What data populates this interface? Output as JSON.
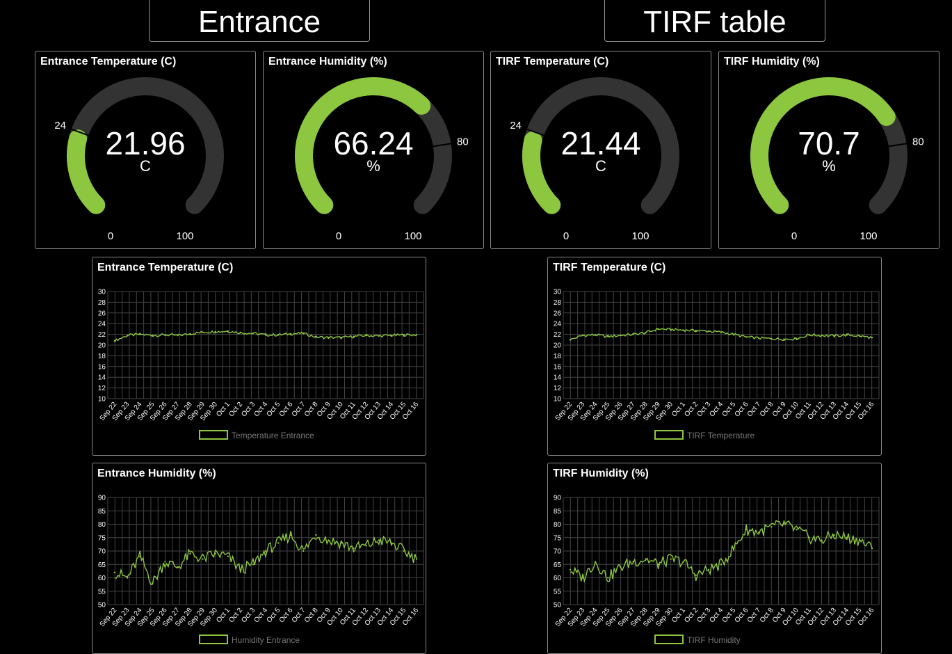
{
  "sections": [
    {
      "title": "Entrance"
    },
    {
      "title": "TIRF table"
    }
  ],
  "colors": {
    "accent": "#8dc63f",
    "track": "#333333",
    "grid": "#444444",
    "border": "#8a8a8a"
  },
  "gauges": [
    {
      "title": "Entrance Temperature (C)",
      "value": "21.96",
      "number": 21.96,
      "unit": "C",
      "min_label": "0",
      "max_label": "100",
      "threshold_label": "24",
      "min": 0,
      "max": 100,
      "threshold": 24
    },
    {
      "title": "Entrance Humidity (%)",
      "value": "66.24",
      "number": 66.24,
      "unit": "%",
      "min_label": "0",
      "max_label": "100",
      "threshold_label": "80",
      "min": 0,
      "max": 100,
      "threshold": 80
    },
    {
      "title": "TIRF Temperature (C)",
      "value": "21.44",
      "number": 21.44,
      "unit": "C",
      "min_label": "0",
      "max_label": "100",
      "threshold_label": "24",
      "min": 0,
      "max": 100,
      "threshold": 24
    },
    {
      "title": "TIRF Humidity (%)",
      "value": "70.7",
      "number": 70.7,
      "unit": "%",
      "min_label": "0",
      "max_label": "100",
      "threshold_label": "80",
      "min": 0,
      "max": 100,
      "threshold": 80
    }
  ],
  "chart_data": [
    {
      "type": "line",
      "title": "Entrance Temperature (C)",
      "x": [
        "Sep 22",
        "Sep 23",
        "Sep 24",
        "Sep 25",
        "Sep 26",
        "Sep 27",
        "Sep 28",
        "Sep 29",
        "Sep 30",
        "Oct 1",
        "Oct 2",
        "Oct 3",
        "Oct 4",
        "Oct 5",
        "Oct 6",
        "Oct 7",
        "Oct 8",
        "Oct 9",
        "Oct 10",
        "Oct 11",
        "Oct 12",
        "Oct 13",
        "Oct 14",
        "Oct 15",
        "Oct 16"
      ],
      "y_ticks": [
        10,
        12,
        14,
        16,
        18,
        20,
        22,
        24,
        26,
        28,
        30
      ],
      "ylim": [
        10,
        30
      ],
      "series": [
        {
          "name": "Temperature Entrance",
          "values": [
            20.8,
            21.8,
            22.0,
            21.8,
            21.9,
            21.8,
            22.1,
            22.4,
            22.5,
            22.6,
            22.3,
            22.2,
            21.9,
            21.9,
            22.1,
            22.2,
            21.5,
            21.4,
            21.4,
            21.6,
            21.8,
            21.7,
            21.8,
            21.9,
            21.9
          ]
        }
      ],
      "grid": true,
      "legend": "bottom"
    },
    {
      "type": "line",
      "title": "TIRF Temperature (C)",
      "x": [
        "Sep 22",
        "Sep 23",
        "Sep 24",
        "Sep 25",
        "Sep 26",
        "Sep 27",
        "Sep 28",
        "Sep 29",
        "Sep 30",
        "Oct 1",
        "Oct 2",
        "Oct 3",
        "Oct 4",
        "Oct 5",
        "Oct 6",
        "Oct 7",
        "Oct 8",
        "Oct 9",
        "Oct 10",
        "Oct 11",
        "Oct 12",
        "Oct 13",
        "Oct 14",
        "Oct 15",
        "Oct 16"
      ],
      "y_ticks": [
        10,
        12,
        14,
        16,
        18,
        20,
        22,
        24,
        26,
        28,
        30
      ],
      "ylim": [
        10,
        30
      ],
      "series": [
        {
          "name": "TIRF Temperature",
          "values": [
            21.0,
            21.8,
            21.9,
            21.6,
            21.8,
            22.0,
            22.3,
            23.0,
            22.9,
            22.8,
            22.7,
            22.6,
            22.4,
            22.0,
            21.5,
            21.3,
            21.2,
            21.1,
            21.2,
            21.9,
            21.8,
            21.7,
            21.9,
            21.7,
            21.4
          ]
        }
      ],
      "grid": true,
      "legend": "bottom"
    },
    {
      "type": "line",
      "title": "Entrance Humidity (%)",
      "x": [
        "Sep 22",
        "Sep 23",
        "Sep 24",
        "Sep 25",
        "Sep 26",
        "Sep 27",
        "Sep 28",
        "Sep 29",
        "Sep 30",
        "Oct 1",
        "Oct 2",
        "Oct 3",
        "Oct 4",
        "Oct 5",
        "Oct 6",
        "Oct 7",
        "Oct 8",
        "Oct 9",
        "Oct 10",
        "Oct 11",
        "Oct 12",
        "Oct 13",
        "Oct 14",
        "Oct 15",
        "Oct 16"
      ],
      "y_ticks": [
        50,
        55,
        60,
        65,
        70,
        75,
        80,
        85,
        90
      ],
      "ylim": [
        50,
        90
      ],
      "series": [
        {
          "name": "Humidity Entrance",
          "values": [
            62,
            60,
            68,
            58,
            66,
            64,
            69,
            67,
            69,
            68,
            63,
            65,
            70,
            73,
            76,
            70,
            76,
            74,
            73,
            71,
            72,
            74,
            73,
            70,
            67
          ]
        }
      ],
      "grid": true,
      "legend": "bottom"
    },
    {
      "type": "line",
      "title": "TIRF Humidity (%)",
      "x": [
        "Sep 22",
        "Sep 23",
        "Sep 24",
        "Sep 25",
        "Sep 26",
        "Sep 27",
        "Sep 28",
        "Sep 29",
        "Sep 30",
        "Oct 1",
        "Oct 2",
        "Oct 3",
        "Oct 4",
        "Oct 5",
        "Oct 6",
        "Oct 7",
        "Oct 8",
        "Oct 9",
        "Oct 10",
        "Oct 11",
        "Oct 12",
        "Oct 13",
        "Oct 14",
        "Oct 15",
        "Oct 16"
      ],
      "y_ticks": [
        50,
        55,
        60,
        65,
        70,
        75,
        80,
        85,
        90
      ],
      "ylim": [
        50,
        90
      ],
      "series": [
        {
          "name": "TIRF Humidity",
          "values": [
            63,
            60,
            66,
            60,
            64,
            66,
            67,
            65,
            67,
            66,
            61,
            63,
            65,
            71,
            78,
            77,
            79,
            80,
            78,
            75,
            74,
            76,
            75,
            74,
            71
          ]
        }
      ],
      "grid": true,
      "legend": "bottom"
    }
  ]
}
